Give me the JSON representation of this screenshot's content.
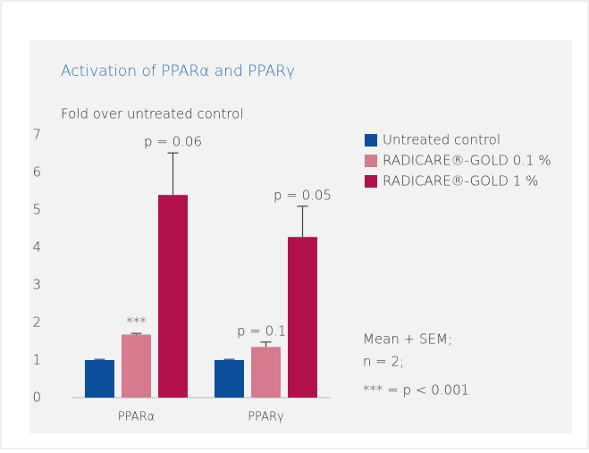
{
  "chart_data": {
    "type": "bar",
    "title": "Activation of PPARα and PPARγ",
    "y_label": "Fold over untreated control",
    "categories": [
      "PPARα",
      "PPARγ"
    ],
    "series": [
      {
        "name": "Untreated control",
        "color": "#0b4f9c",
        "values": [
          1.0,
          1.0
        ],
        "errors": [
          0.02,
          0.02
        ],
        "annotations": [
          null,
          null
        ]
      },
      {
        "name": "RADICARE®-GOLD 0.1 %",
        "color": "#d67a8e",
        "values": [
          1.68,
          1.35
        ],
        "errors": [
          0.03,
          0.13
        ],
        "annotations": [
          "***",
          "p = 0.11"
        ]
      },
      {
        "name": "RADICARE®-GOLD 1 %",
        "color": "#b3104e",
        "values": [
          5.4,
          4.28
        ],
        "errors": [
          1.12,
          0.82
        ],
        "annotations": [
          "p = 0.06",
          "p = 0.05"
        ]
      }
    ],
    "ylim": [
      0,
      7
    ],
    "yticks": [
      0,
      1,
      2,
      3,
      4,
      5,
      6,
      7
    ],
    "legend": "right",
    "notes": [
      "Mean + SEM;",
      "n = 2;",
      "*** = p < 0.001"
    ]
  }
}
